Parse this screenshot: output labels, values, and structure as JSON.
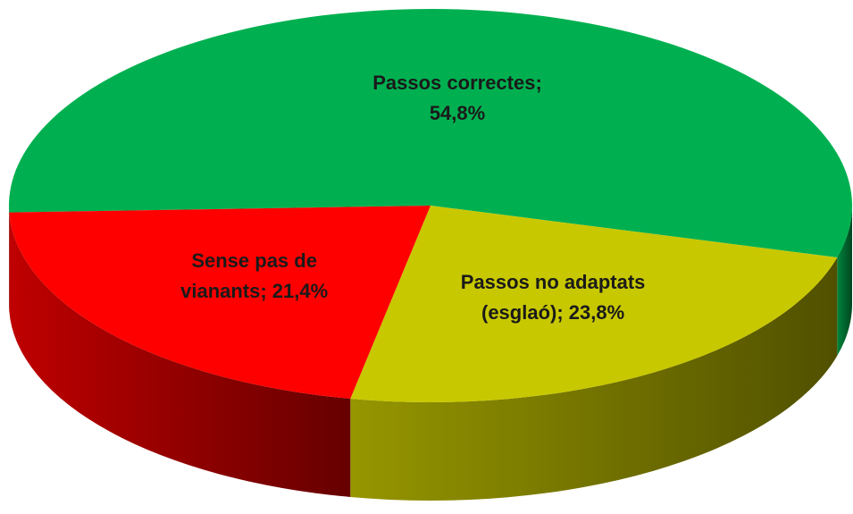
{
  "chart_data": {
    "type": "pie",
    "values": [
      54.8,
      23.8,
      21.4
    ],
    "value_labels": [
      "Passos correctes; 54,8%",
      "Passos no adaptats (esglaó); 23,8%",
      "Sense pas de vianants; 21,4%"
    ],
    "colors": [
      "#00b050",
      "#c8c800",
      "#ff0000"
    ]
  }
}
